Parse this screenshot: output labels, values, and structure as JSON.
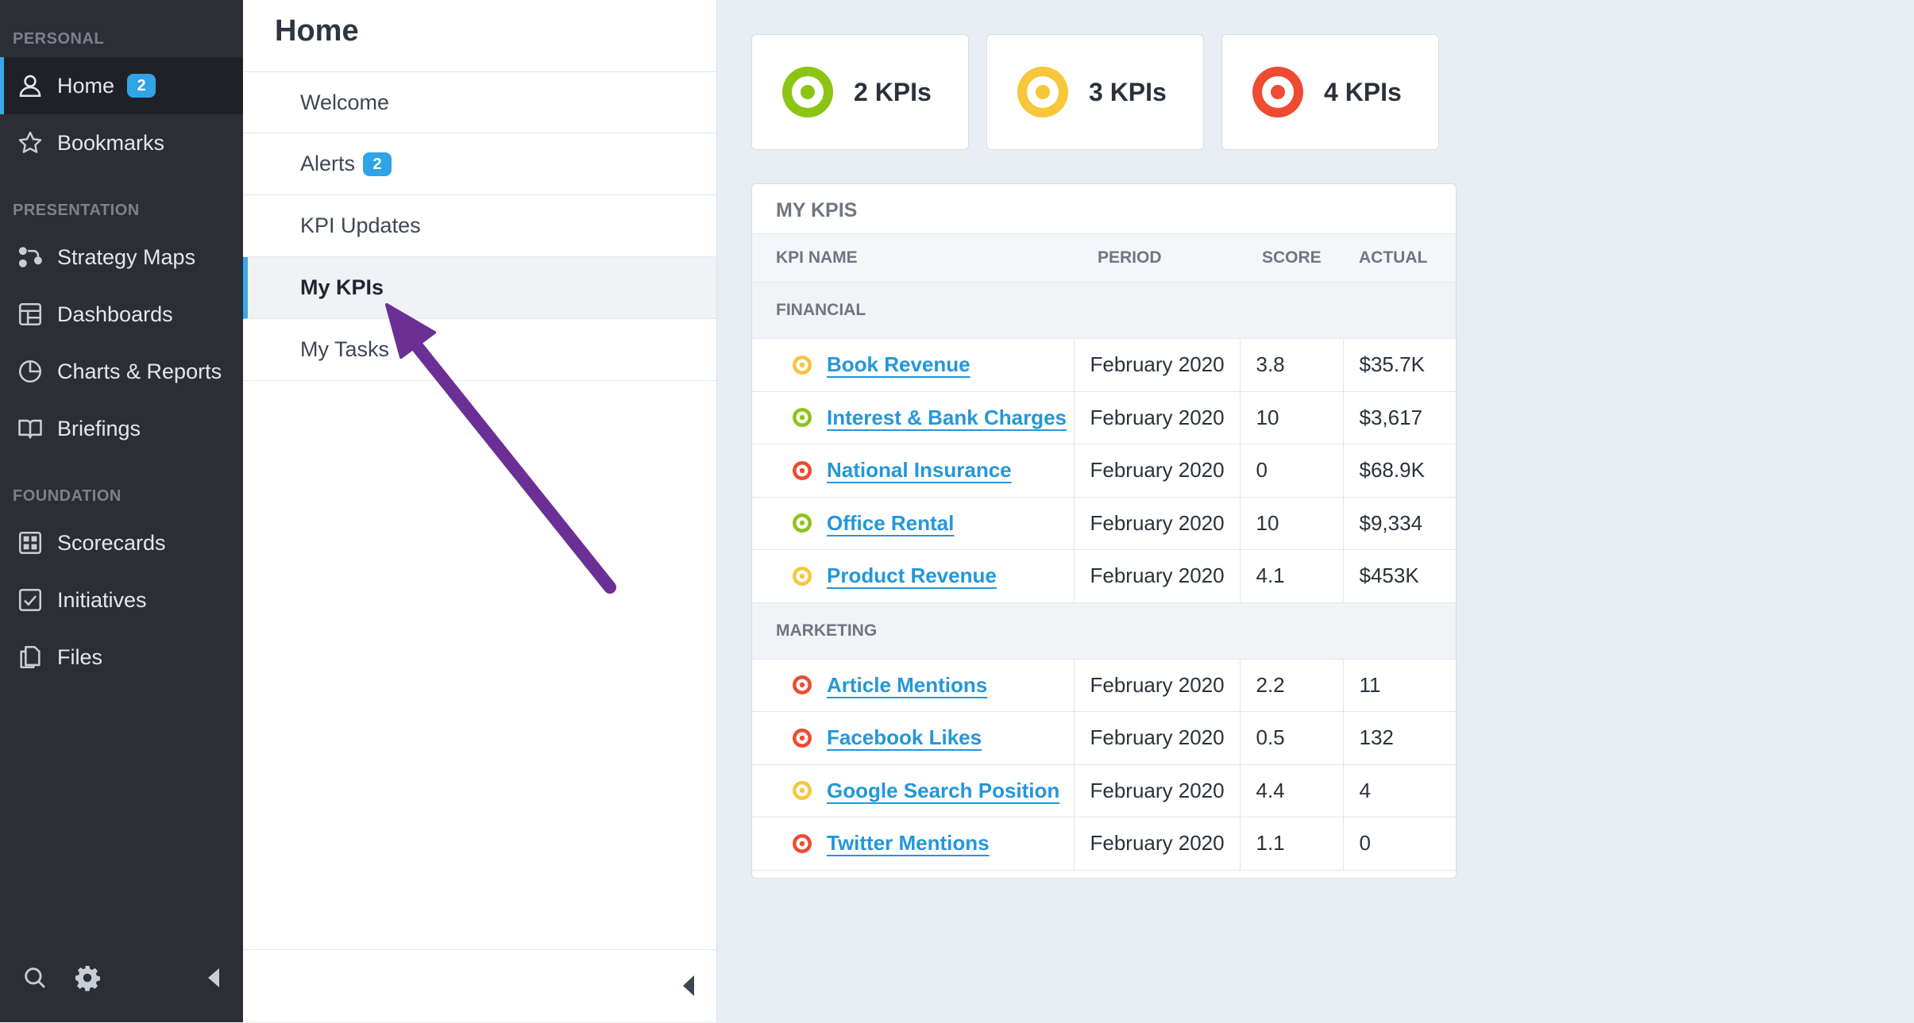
{
  "sidebar": {
    "sections": [
      {
        "label": "PERSONAL"
      },
      {
        "label": "PRESENTATION"
      },
      {
        "label": "FOUNDATION"
      }
    ],
    "items": [
      {
        "label": "Home",
        "badge": "2",
        "icon": "person-icon"
      },
      {
        "label": "Bookmarks",
        "icon": "star-icon"
      },
      {
        "label": "Strategy Maps",
        "icon": "strategy-map-icon"
      },
      {
        "label": "Dashboards",
        "icon": "dashboard-icon"
      },
      {
        "label": "Charts & Reports",
        "icon": "pie-chart-icon"
      },
      {
        "label": "Briefings",
        "icon": "book-icon"
      },
      {
        "label": "Scorecards",
        "icon": "scorecard-icon"
      },
      {
        "label": "Initiatives",
        "icon": "checkbox-icon"
      },
      {
        "label": "Files",
        "icon": "files-icon"
      }
    ],
    "bottom_icons": [
      "search-icon",
      "gear-icon",
      "collapse-left-icon"
    ]
  },
  "subnav": {
    "title": "Home",
    "items": [
      {
        "label": "Welcome"
      },
      {
        "label": "Alerts",
        "badge": "2"
      },
      {
        "label": "KPI Updates"
      },
      {
        "label": "My KPIs"
      },
      {
        "label": "My Tasks"
      }
    ]
  },
  "summary": [
    {
      "label": "2 KPIs",
      "status": "green"
    },
    {
      "label": "3 KPIs",
      "status": "yellow"
    },
    {
      "label": "4 KPIs",
      "status": "red"
    }
  ],
  "colors": {
    "green": "#8cc414",
    "yellow": "#f7c63a",
    "red": "#ee4b32",
    "accent": "#3aa8e8",
    "link": "#2397d9"
  },
  "kpi_table": {
    "title": "MY KPIS",
    "columns": [
      "KPI NAME",
      "PERIOD",
      "SCORE",
      "ACTUAL"
    ],
    "groups": [
      {
        "name": "FINANCIAL",
        "rows": [
          {
            "name": "Book Revenue",
            "status": "yellow",
            "period": "February 2020",
            "score": "3.8",
            "actual": "$35.7K"
          },
          {
            "name": "Interest & Bank Charges",
            "status": "green",
            "period": "February 2020",
            "score": "10",
            "actual": "$3,617"
          },
          {
            "name": "National Insurance",
            "status": "red",
            "period": "February 2020",
            "score": "0",
            "actual": "$68.9K"
          },
          {
            "name": "Office Rental",
            "status": "green",
            "period": "February 2020",
            "score": "10",
            "actual": "$9,334"
          },
          {
            "name": "Product Revenue",
            "status": "yellow",
            "period": "February 2020",
            "score": "4.1",
            "actual": "$453K"
          }
        ]
      },
      {
        "name": "MARKETING",
        "rows": [
          {
            "name": "Article Mentions",
            "status": "red",
            "period": "February 2020",
            "score": "2.2",
            "actual": "11"
          },
          {
            "name": "Facebook Likes",
            "status": "red",
            "period": "February 2020",
            "score": "0.5",
            "actual": "132"
          },
          {
            "name": "Google Search Position",
            "status": "yellow",
            "period": "February 2020",
            "score": "4.4",
            "actual": "4"
          },
          {
            "name": "Twitter Mentions",
            "status": "red",
            "period": "February 2020",
            "score": "1.1",
            "actual": "0"
          }
        ]
      }
    ]
  }
}
